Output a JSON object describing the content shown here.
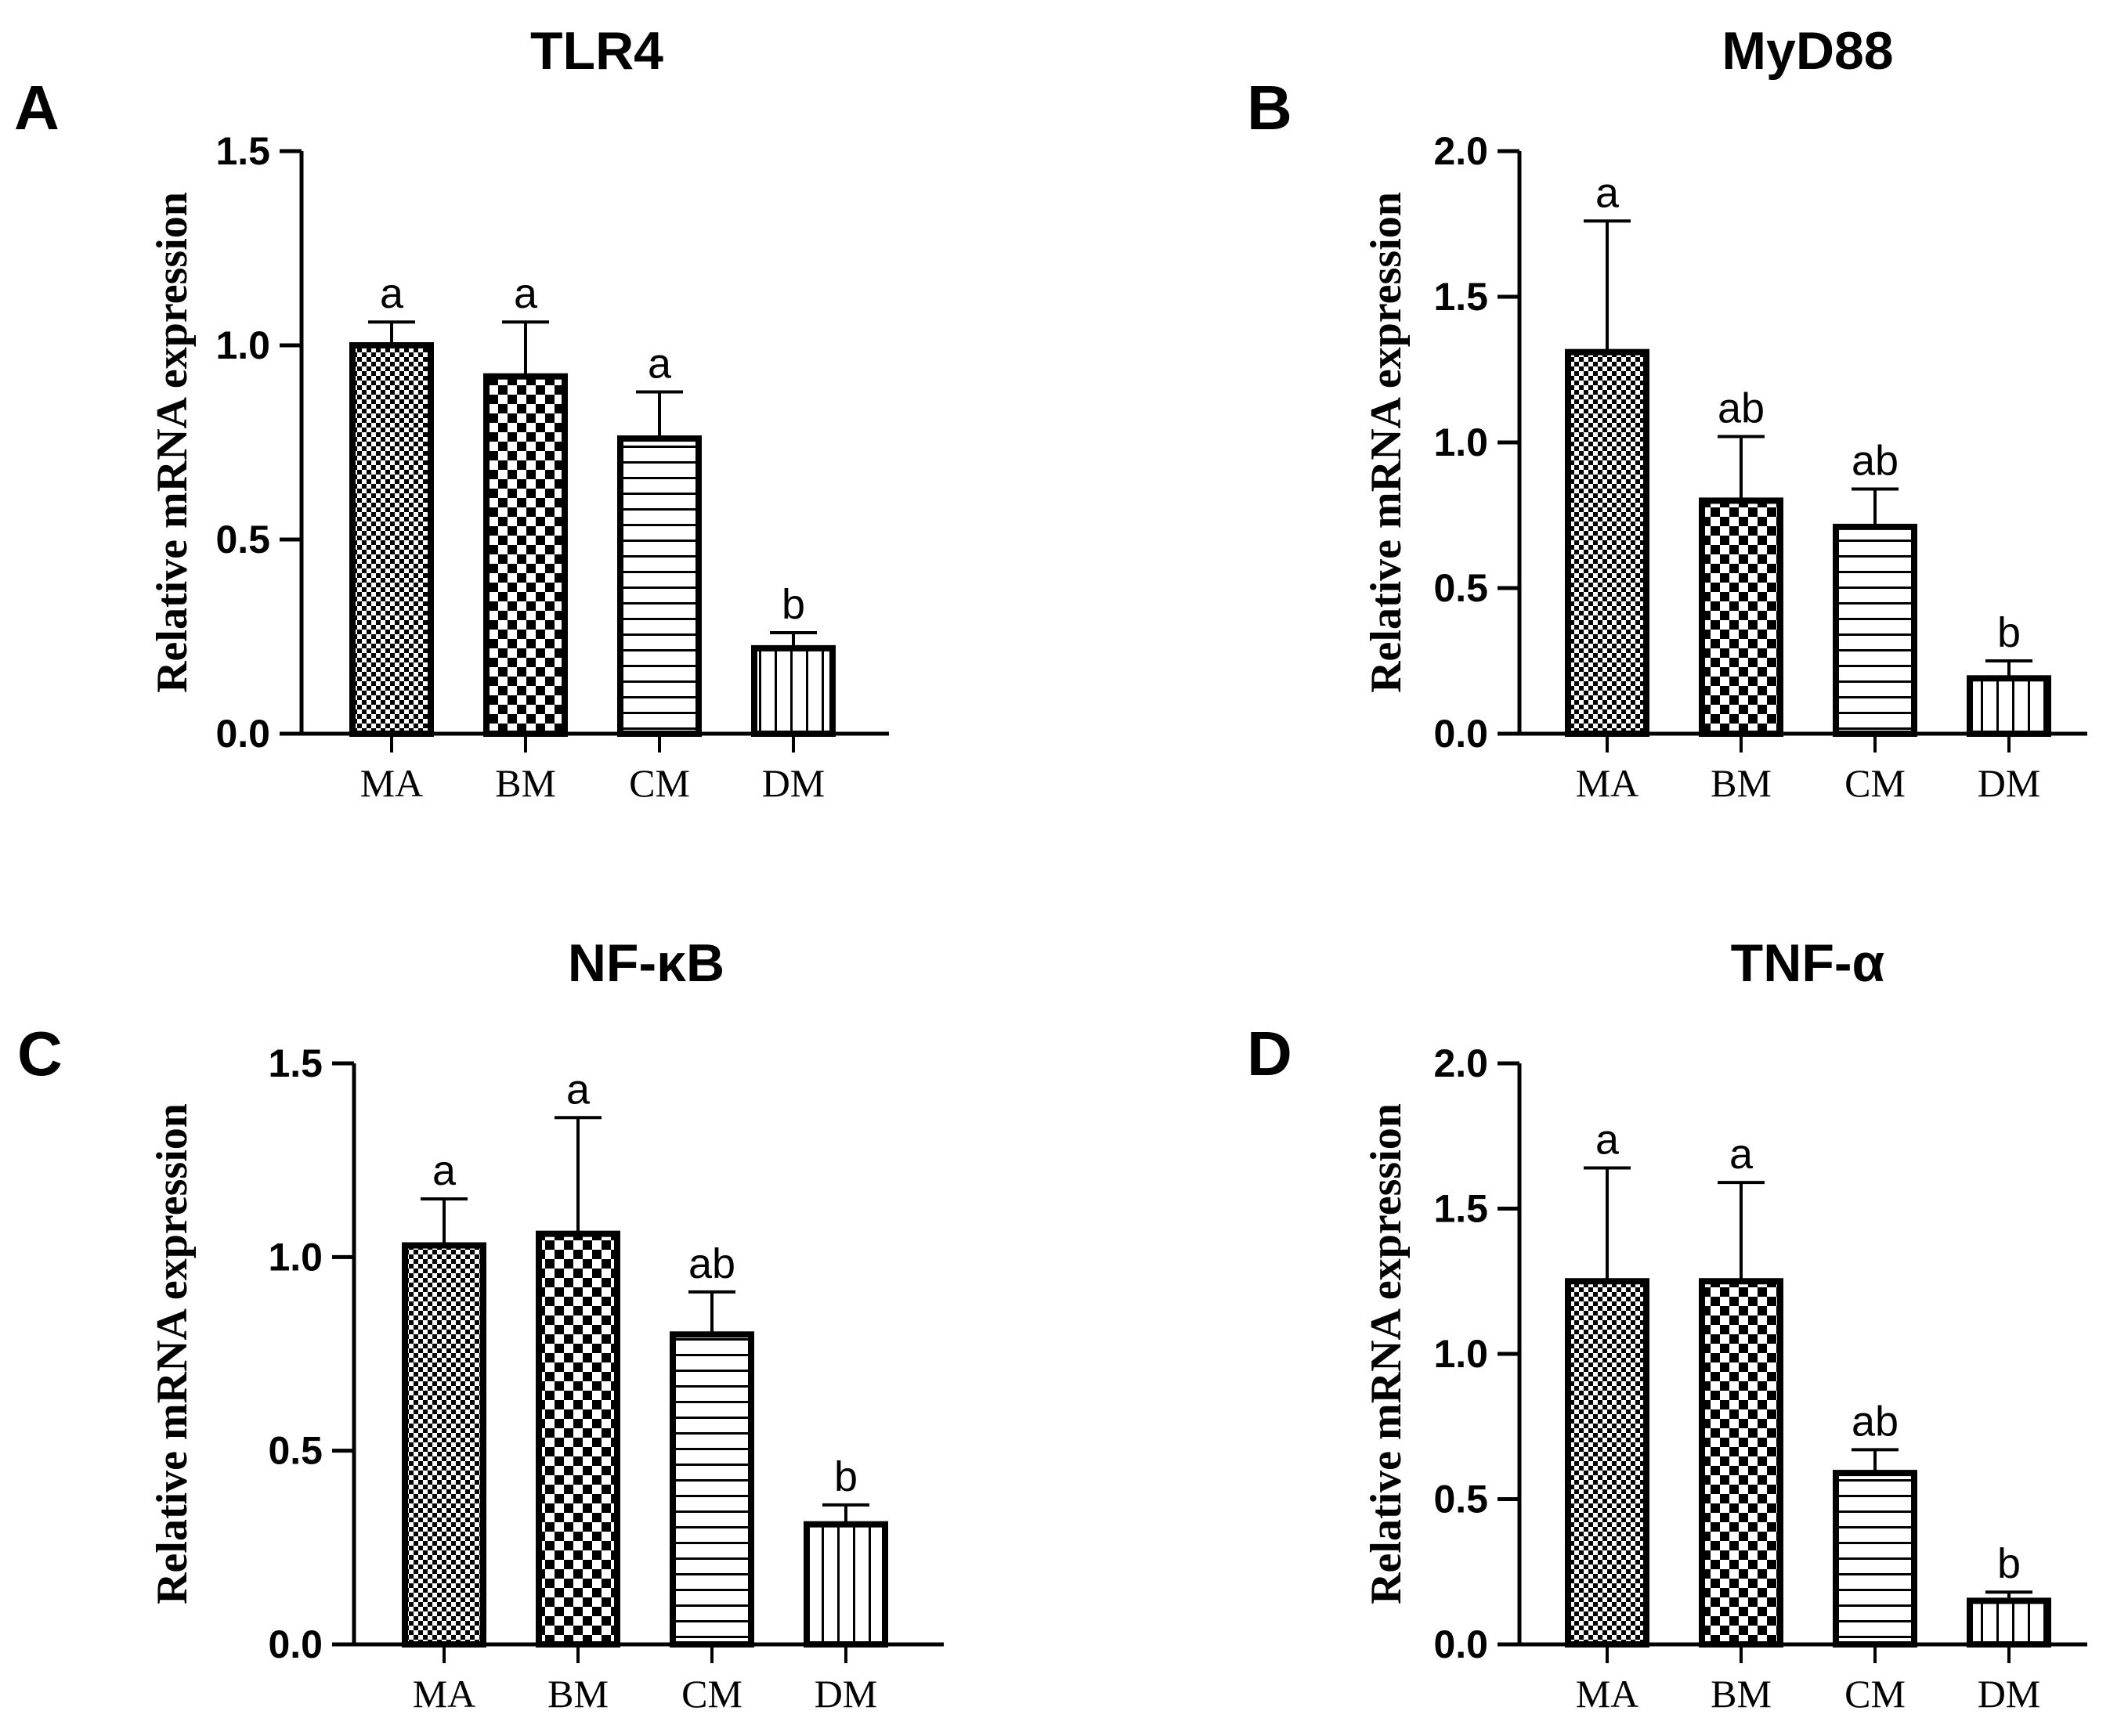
{
  "chart_data": [
    {
      "type": "bar",
      "panel": "A",
      "title": "TLR4",
      "ylabel": "Relative mRNA expression",
      "xlabel": "",
      "ylim": [
        0,
        1.5
      ],
      "yticks": [
        0.0,
        0.5,
        1.0,
        1.5
      ],
      "ytick_labels": [
        "0.0",
        "0.5",
        "1.0",
        "1.5"
      ],
      "categories": [
        "MA",
        "BM",
        "CM",
        "DM"
      ],
      "values": [
        1.0,
        0.92,
        0.76,
        0.22
      ],
      "errors": [
        0.06,
        0.14,
        0.12,
        0.04
      ],
      "patterns": [
        "fine-check",
        "checker",
        "hlines",
        "vlines"
      ],
      "significance": [
        "a",
        "a",
        "a",
        "b"
      ]
    },
    {
      "type": "bar",
      "panel": "B",
      "title": "MyD88",
      "ylabel": "Relative mRNA expression",
      "xlabel": "",
      "ylim": [
        0,
        2.0
      ],
      "yticks": [
        0.0,
        0.5,
        1.0,
        1.5,
        2.0
      ],
      "ytick_labels": [
        "0.0",
        "0.5",
        "1.0",
        "1.5",
        "2.0"
      ],
      "categories": [
        "MA",
        "BM",
        "CM",
        "DM"
      ],
      "values": [
        1.31,
        0.8,
        0.71,
        0.19
      ],
      "errors": [
        0.45,
        0.22,
        0.13,
        0.06
      ],
      "patterns": [
        "fine-check",
        "checker",
        "hlines",
        "vlines"
      ],
      "significance": [
        "a",
        "ab",
        "ab",
        "b"
      ]
    },
    {
      "type": "bar",
      "panel": "C",
      "title": "NF-κB",
      "ylabel": "Relative mRNA expression",
      "xlabel": "",
      "ylim": [
        0,
        1.5
      ],
      "yticks": [
        0.0,
        0.5,
        1.0,
        1.5
      ],
      "ytick_labels": [
        "0.0",
        "0.5",
        "1.0",
        "1.5"
      ],
      "categories": [
        "MA",
        "BM",
        "CM",
        "DM"
      ],
      "values": [
        1.03,
        1.06,
        0.8,
        0.31
      ],
      "errors": [
        0.12,
        0.3,
        0.11,
        0.05
      ],
      "patterns": [
        "fine-check",
        "checker",
        "hlines",
        "vlines"
      ],
      "significance": [
        "a",
        "a",
        "ab",
        "b"
      ]
    },
    {
      "type": "bar",
      "panel": "D",
      "title": "TNF-α",
      "ylabel": "Relative mRNA expression",
      "xlabel": "",
      "ylim": [
        0,
        2.0
      ],
      "yticks": [
        0.0,
        0.5,
        1.0,
        1.5,
        2.0
      ],
      "ytick_labels": [
        "0.0",
        "0.5",
        "1.0",
        "1.5",
        "2.0"
      ],
      "categories": [
        "MA",
        "BM",
        "CM",
        "DM"
      ],
      "values": [
        1.25,
        1.25,
        0.59,
        0.15
      ],
      "errors": [
        0.39,
        0.34,
        0.08,
        0.03
      ],
      "patterns": [
        "fine-check",
        "checker",
        "hlines",
        "vlines"
      ],
      "significance": [
        "a",
        "a",
        "ab",
        "b"
      ]
    }
  ]
}
